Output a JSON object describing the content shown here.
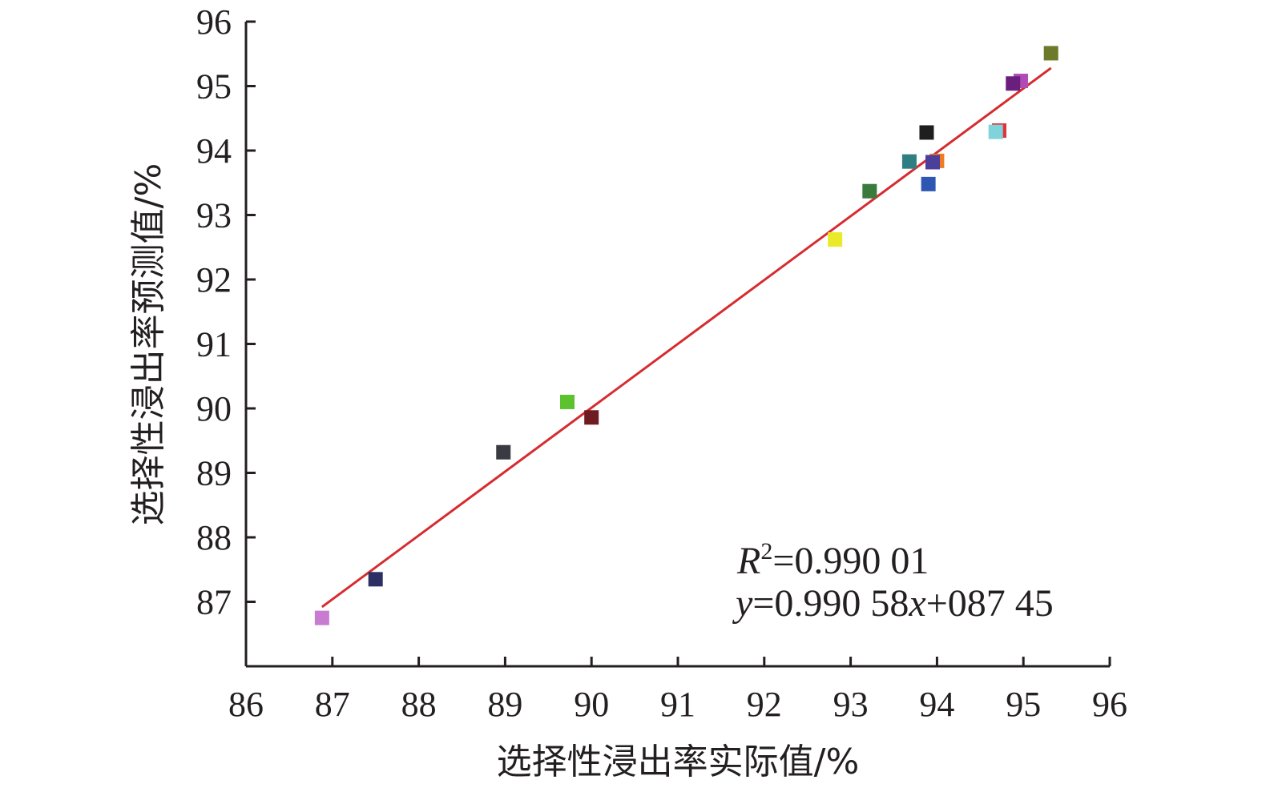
{
  "chart_data": {
    "type": "scatter",
    "xlabel": "选择性浸出率实际值/%",
    "ylabel": "选择性浸出率预测值/%",
    "xlim": [
      86,
      96
    ],
    "ylim": [
      86,
      96
    ],
    "xticks": [
      "86",
      "87",
      "88",
      "89",
      "90",
      "91",
      "92",
      "93",
      "94",
      "95",
      "96"
    ],
    "yticks": [
      "87",
      "88",
      "89",
      "90",
      "91",
      "92",
      "93",
      "94",
      "95",
      "96"
    ],
    "grid": false,
    "points": [
      {
        "x": 86.88,
        "y": 86.75,
        "color": "#c77bd1"
      },
      {
        "x": 87.5,
        "y": 87.35,
        "color": "#2b2f63"
      },
      {
        "x": 88.98,
        "y": 89.32,
        "color": "#3a3b42"
      },
      {
        "x": 89.72,
        "y": 90.1,
        "color": "#5cc22e"
      },
      {
        "x": 90.0,
        "y": 89.86,
        "color": "#6e1b22"
      },
      {
        "x": 92.82,
        "y": 92.62,
        "color": "#e9ea2a"
      },
      {
        "x": 93.22,
        "y": 93.37,
        "color": "#3a7a3c"
      },
      {
        "x": 93.68,
        "y": 93.83,
        "color": "#2f7f82"
      },
      {
        "x": 93.88,
        "y": 94.28,
        "color": "#1e1e1e"
      },
      {
        "x": 93.9,
        "y": 93.48,
        "color": "#2e57b4"
      },
      {
        "x": 94.0,
        "y": 93.84,
        "color": "#f07b23"
      },
      {
        "x": 93.95,
        "y": 93.82,
        "color": "#4b3f9a"
      },
      {
        "x": 94.72,
        "y": 94.31,
        "color": "#e0343b"
      },
      {
        "x": 94.68,
        "y": 94.29,
        "color": "#7fd3db"
      },
      {
        "x": 94.97,
        "y": 95.08,
        "color": "#b04bb5"
      },
      {
        "x": 94.88,
        "y": 95.04,
        "color": "#6b1f7c"
      },
      {
        "x": 95.32,
        "y": 95.51,
        "color": "#6d7a2a"
      }
    ],
    "fit_line": {
      "x": [
        86.88,
        95.32
      ],
      "y": [
        86.92,
        95.28
      ],
      "color": "#d62b2f"
    },
    "annotations": {
      "r2_label": "R",
      "r2_sup": "2",
      "r2_value": "=0.990 01",
      "eq_y": "y",
      "eq_mid": "=0.990 58",
      "eq_x": "x",
      "eq_tail": "+087 45"
    }
  }
}
